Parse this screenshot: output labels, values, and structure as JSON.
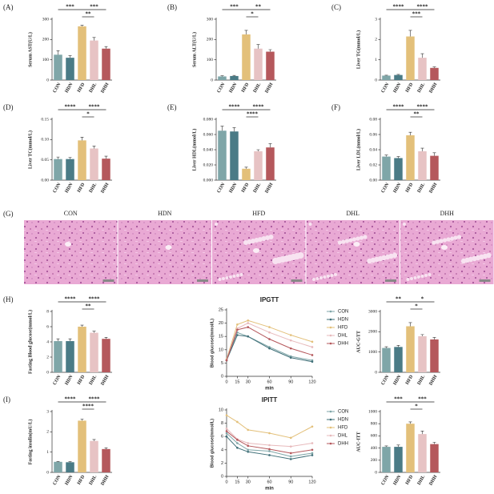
{
  "chart_data": [
    {
      "type": "bar",
      "panel": "(A)",
      "ylabel": "Serum AST(U/L)",
      "categories": [
        "CON",
        "HDN",
        "HFD",
        "DHL",
        "DHH"
      ],
      "values": [
        125,
        110,
        265,
        195,
        155
      ],
      "errors": [
        20,
        10,
        5,
        15,
        10
      ],
      "colors": [
        "#7fa6a8",
        "#4a7b86",
        "#e3c07a",
        "#e7c3c4",
        "#b5585c"
      ],
      "ylim": [
        0,
        300
      ],
      "yticks": [
        0,
        100,
        200,
        300
      ],
      "significance": [
        {
          "pair": [
            "CON",
            "HFD"
          ],
          "label": "***"
        },
        {
          "pair": [
            "HFD",
            "DHL"
          ],
          "label": "**"
        },
        {
          "pair": [
            "HFD",
            "DHH"
          ],
          "label": "***"
        }
      ]
    },
    {
      "type": "bar",
      "panel": "(B)",
      "ylabel": "Serum ALT(U/L)",
      "categories": [
        "CON",
        "HDN",
        "HFD",
        "DHL",
        "DHH"
      ],
      "values": [
        18,
        20,
        225,
        155,
        140
      ],
      "errors": [
        3,
        3,
        20,
        20,
        10
      ],
      "colors": [
        "#7fa6a8",
        "#4a7b86",
        "#e3c07a",
        "#e7c3c4",
        "#b5585c"
      ],
      "ylim": [
        0,
        300
      ],
      "yticks": [
        0,
        100,
        200,
        300
      ],
      "significance": [
        {
          "pair": [
            "CON",
            "HFD"
          ],
          "label": "***"
        },
        {
          "pair": [
            "HFD",
            "DHL"
          ],
          "label": "*"
        },
        {
          "pair": [
            "HFD",
            "DHH"
          ],
          "label": "**"
        }
      ]
    },
    {
      "type": "bar",
      "panel": "(C)",
      "ylabel": "Liver TG(mmol/L)",
      "categories": [
        "CON",
        "HDN",
        "HFD",
        "DHL",
        "DHH"
      ],
      "values": [
        0.22,
        0.25,
        2.15,
        1.1,
        0.6
      ],
      "errors": [
        0.02,
        0.03,
        0.3,
        0.2,
        0.05
      ],
      "colors": [
        "#7fa6a8",
        "#4a7b86",
        "#e3c07a",
        "#e7c3c4",
        "#b5585c"
      ],
      "ylim": [
        0,
        3
      ],
      "yticks": [
        0,
        1,
        2,
        3
      ],
      "significance": [
        {
          "pair": [
            "CON",
            "HFD"
          ],
          "label": "****"
        },
        {
          "pair": [
            "HFD",
            "DHL"
          ],
          "label": "***"
        },
        {
          "pair": [
            "HFD",
            "DHH"
          ],
          "label": "****"
        }
      ]
    },
    {
      "type": "bar",
      "panel": "(D)",
      "ylabel": "Liver TC(mmol/L)",
      "categories": [
        "CON",
        "HDN",
        "HFD",
        "DHL",
        "DHH"
      ],
      "values": [
        0.052,
        0.052,
        0.098,
        0.078,
        0.053
      ],
      "errors": [
        0.005,
        0.004,
        0.008,
        0.006,
        0.006
      ],
      "colors": [
        "#7fa6a8",
        "#4a7b86",
        "#e3c07a",
        "#e7c3c4",
        "#b5585c"
      ],
      "ylim": [
        0,
        0.15
      ],
      "yticks": [
        {
          "value": 0,
          "label": "0.00"
        },
        0.05,
        {
          "value": 0.1,
          "label": "0.10"
        },
        0.15
      ],
      "significance": [
        {
          "pair": [
            "CON",
            "HFD"
          ],
          "label": "****"
        },
        {
          "pair": [
            "HFD",
            "DHL"
          ],
          "label": "*"
        },
        {
          "pair": [
            "HFD",
            "DHH"
          ],
          "label": "****"
        }
      ]
    },
    {
      "type": "bar",
      "panel": "(E)",
      "ylabel": "Liver HDL(mmol/L)",
      "categories": [
        "CON",
        "HDN",
        "HFD",
        "DHL",
        "DHH"
      ],
      "values": [
        0.065,
        0.064,
        0.015,
        0.038,
        0.043
      ],
      "errors": [
        0.006,
        0.005,
        0.002,
        0.002,
        0.005
      ],
      "colors": [
        "#7fa6a8",
        "#4a7b86",
        "#e3c07a",
        "#e7c3c4",
        "#b5585c"
      ],
      "ylim": [
        0,
        0.08
      ],
      "yticks": [
        {
          "value": 0,
          "label": "0.000"
        },
        {
          "value": 0.02,
          "label": "0.020"
        },
        {
          "value": 0.04,
          "label": "0.040"
        },
        {
          "value": 0.06,
          "label": "0.060"
        },
        {
          "value": 0.08,
          "label": "0.080"
        }
      ],
      "significance": [
        {
          "pair": [
            "CON",
            "HFD"
          ],
          "label": "****"
        },
        {
          "pair": [
            "HFD",
            "DHL"
          ],
          "label": "****"
        },
        {
          "pair": [
            "HFD",
            "DHH"
          ],
          "label": "****"
        }
      ]
    },
    {
      "type": "bar",
      "panel": "(F)",
      "ylabel": "Liver LDL(mmol/L)",
      "categories": [
        "CON",
        "HDN",
        "HFD",
        "DHL",
        "DHH"
      ],
      "values": [
        0.031,
        0.029,
        0.059,
        0.038,
        0.032
      ],
      "errors": [
        0.002,
        0.002,
        0.004,
        0.004,
        0.004
      ],
      "colors": [
        "#7fa6a8",
        "#4a7b86",
        "#e3c07a",
        "#e7c3c4",
        "#b5585c"
      ],
      "ylim": [
        0,
        0.08
      ],
      "yticks": [
        {
          "value": 0,
          "label": "0.00"
        },
        0.02,
        0.04,
        0.06,
        0.08
      ],
      "significance": [
        {
          "pair": [
            "CON",
            "HFD"
          ],
          "label": "****"
        },
        {
          "pair": [
            "HFD",
            "DHL"
          ],
          "label": "**"
        },
        {
          "pair": [
            "HFD",
            "DHH"
          ],
          "label": "****"
        }
      ]
    },
    {
      "type": "image",
      "panel": "(G)",
      "categories": [
        "CON",
        "HDN",
        "HFD",
        "DHL",
        "DHH"
      ]
    },
    {
      "type": "bar",
      "panel": "(H)",
      "ylabel": "Fasting Blood glucose(mmol/L)",
      "categories": [
        "CON",
        "HDN",
        "HFD",
        "DHL",
        "DHH"
      ],
      "values": [
        4.1,
        4.1,
        6.0,
        5.2,
        4.4
      ],
      "errors": [
        0.3,
        0.3,
        0.2,
        0.2,
        0.2
      ],
      "colors": [
        "#7fa6a8",
        "#4a7b86",
        "#e3c07a",
        "#e7c3c4",
        "#b5585c"
      ],
      "ylim": [
        0,
        8
      ],
      "yticks": [
        0,
        2,
        4,
        6,
        8
      ],
      "significance": [
        {
          "pair": [
            "CON",
            "HFD"
          ],
          "label": "****"
        },
        {
          "pair": [
            "HFD",
            "DHL"
          ],
          "label": "**"
        },
        {
          "pair": [
            "HFD",
            "DHH"
          ],
          "label": "****"
        }
      ]
    },
    {
      "type": "line",
      "title": "IPGTT",
      "ylabel": "Blood glucose(mmol/L)",
      "xlabel": "min",
      "x": [
        0,
        15,
        30,
        60,
        90,
        120
      ],
      "xlim": [
        0,
        120
      ],
      "xticks": [
        0,
        15,
        30,
        60,
        90,
        120
      ],
      "ylim": [
        0,
        25
      ],
      "yticks": [
        0,
        5,
        10,
        15,
        20,
        25
      ],
      "series": [
        {
          "name": "CON",
          "color": "#7fa6a8",
          "values": [
            6,
            16.5,
            15,
            11,
            7.5,
            6
          ]
        },
        {
          "name": "HDN",
          "color": "#3f6f78",
          "values": [
            6,
            15.5,
            15,
            10.5,
            7,
            5.5
          ]
        },
        {
          "name": "HFD",
          "color": "#e3c07a",
          "values": [
            6.5,
            19.5,
            21,
            18.5,
            15.5,
            13
          ]
        },
        {
          "name": "DHL",
          "color": "#e7b9bb",
          "values": [
            6.2,
            18,
            20,
            16.5,
            13.5,
            11
          ]
        },
        {
          "name": "DHH",
          "color": "#b5585c",
          "values": [
            6,
            17.5,
            18.5,
            14,
            10.5,
            8
          ]
        }
      ]
    },
    {
      "type": "bar",
      "ylabel": "AUC-GTT",
      "categories": [
        "CON",
        "HDN",
        "HFD",
        "DHL",
        "DHH"
      ],
      "values": [
        1200,
        1250,
        2270,
        1780,
        1620
      ],
      "errors": [
        60,
        80,
        180,
        80,
        100
      ],
      "colors": [
        "#7fa6a8",
        "#4a7b86",
        "#e3c07a",
        "#e7c3c4",
        "#b5585c"
      ],
      "ylim": [
        0,
        3000
      ],
      "yticks": [
        0,
        1000,
        2000,
        3000
      ],
      "significance": [
        {
          "pair": [
            "CON",
            "HFD"
          ],
          "label": "**"
        },
        {
          "pair": [
            "HFD",
            "DHL"
          ],
          "label": "*"
        },
        {
          "pair": [
            "HFD",
            "DHH"
          ],
          "label": "*"
        }
      ]
    },
    {
      "type": "bar",
      "panel": "(I)",
      "ylabel": "Fasting insulin(mU/L)",
      "categories": [
        "CON",
        "HDN",
        "HFD",
        "DHL",
        "DHH"
      ],
      "values": [
        0.52,
        0.5,
        2.55,
        1.55,
        1.15
      ],
      "errors": [
        0.02,
        0.03,
        0.08,
        0.07,
        0.06
      ],
      "colors": [
        "#7fa6a8",
        "#4a7b86",
        "#e3c07a",
        "#e7c3c4",
        "#b5585c"
      ],
      "ylim": [
        0,
        3
      ],
      "yticks": [
        0,
        1,
        2,
        3
      ],
      "significance": [
        {
          "pair": [
            "CON",
            "HFD"
          ],
          "label": "****"
        },
        {
          "pair": [
            "HFD",
            "DHL"
          ],
          "label": "****"
        },
        {
          "pair": [
            "HFD",
            "DHH"
          ],
          "label": "****"
        }
      ]
    },
    {
      "type": "line",
      "title": "IPITT",
      "ylabel": "Blood glucose(mmol/L)",
      "xlabel": "min",
      "x": [
        0,
        15,
        30,
        60,
        90,
        120
      ],
      "xlim": [
        0,
        120
      ],
      "xticks": [
        0,
        15,
        30,
        60,
        90,
        120
      ],
      "ylim": [
        0,
        10
      ],
      "yticks": [
        0,
        2,
        4,
        6,
        8,
        10
      ],
      "series": [
        {
          "name": "CON",
          "color": "#7fa6a8",
          "values": [
            6.5,
            5,
            4,
            3.8,
            3,
            3.5
          ]
        },
        {
          "name": "HDN",
          "color": "#3f6f78",
          "values": [
            6,
            4.3,
            3.7,
            3.2,
            2.6,
            3.2
          ]
        },
        {
          "name": "HFD",
          "color": "#e3c07a",
          "values": [
            9.2,
            8.2,
            7,
            6.5,
            5.8,
            7.5
          ]
        },
        {
          "name": "DHL",
          "color": "#e7b9bb",
          "values": [
            7.2,
            5.6,
            5,
            4.7,
            4.5,
            5
          ]
        },
        {
          "name": "DHH",
          "color": "#b5585c",
          "values": [
            6.8,
            5.5,
            4.6,
            4.1,
            3.5,
            4
          ]
        }
      ]
    },
    {
      "type": "bar",
      "ylabel": "AUC-ITT",
      "categories": [
        "CON",
        "HDN",
        "HFD",
        "DHL",
        "DHH"
      ],
      "values": [
        420,
        420,
        800,
        630,
        465
      ],
      "errors": [
        15,
        30,
        30,
        50,
        30
      ],
      "colors": [
        "#7fa6a8",
        "#4a7b86",
        "#e3c07a",
        "#e7c3c4",
        "#b5585c"
      ],
      "ylim": [
        0,
        1000
      ],
      "yticks": [
        0,
        200,
        400,
        600,
        800,
        1000
      ],
      "significance": [
        {
          "pair": [
            "CON",
            "HFD"
          ],
          "label": "***"
        },
        {
          "pair": [
            "HFD",
            "DHL"
          ],
          "label": "*"
        },
        {
          "pair": [
            "HFD",
            "DHH"
          ],
          "label": "***"
        }
      ]
    }
  ]
}
